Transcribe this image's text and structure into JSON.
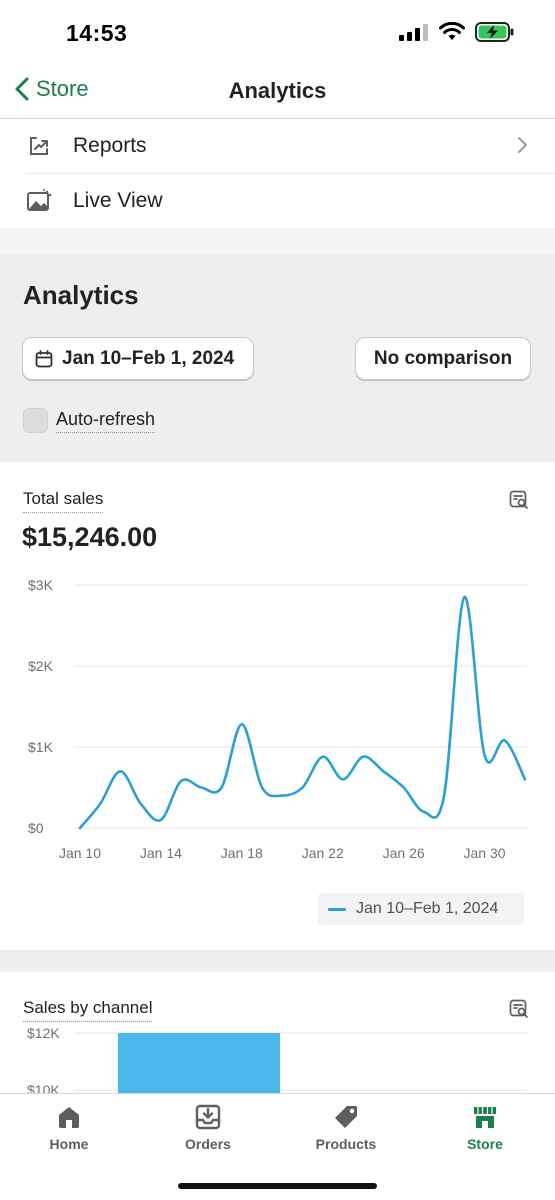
{
  "status_bar": {
    "time": "14:53"
  },
  "nav": {
    "back_label": "Store",
    "title": "Analytics"
  },
  "menu": {
    "items": [
      {
        "label": "Reports",
        "icon": "reports-icon"
      },
      {
        "label": "Live View",
        "icon": "live-view-icon"
      }
    ]
  },
  "analytics": {
    "title": "Analytics",
    "date_range": "Jan 10–Feb 1, 2024",
    "comparison": "No comparison",
    "auto_refresh_label": "Auto-refresh",
    "auto_refresh_checked": false
  },
  "total_sales": {
    "label": "Total sales",
    "value": "$15,246.00",
    "legend_label": "Jan 10–Feb 1, 2024"
  },
  "sales_by_channel": {
    "label": "Sales by channel"
  },
  "tabs": [
    {
      "label": "Home",
      "icon": "home-icon",
      "active": false
    },
    {
      "label": "Orders",
      "icon": "orders-icon",
      "active": false
    },
    {
      "label": "Products",
      "icon": "tag-icon",
      "active": false
    },
    {
      "label": "Store",
      "icon": "store-icon",
      "active": true
    }
  ],
  "colors": {
    "accent": "#1a7f4e",
    "line": "#2a9fd8",
    "bar": "#4bb8ec"
  },
  "chart_data": [
    {
      "type": "line",
      "title": "Total sales",
      "x": [
        "Jan 10",
        "Jan 11",
        "Jan 12",
        "Jan 13",
        "Jan 14",
        "Jan 15",
        "Jan 16",
        "Jan 17",
        "Jan 18",
        "Jan 19",
        "Jan 20",
        "Jan 21",
        "Jan 22",
        "Jan 23",
        "Jan 24",
        "Jan 25",
        "Jan 26",
        "Jan 27",
        "Jan 28",
        "Jan 29",
        "Jan 30",
        "Jan 31",
        "Feb 1"
      ],
      "x_tick_labels": [
        "Jan 10",
        "Jan 14",
        "Jan 18",
        "Jan 22",
        "Jan 26",
        "Jan 30"
      ],
      "y_tick_labels": [
        "$0",
        "$1K",
        "$2K",
        "$3K"
      ],
      "ylim": [
        0,
        3000
      ],
      "series": [
        {
          "name": "Jan 10–Feb 1, 2024",
          "values": [
            0,
            300,
            700,
            300,
            100,
            580,
            500,
            500,
            1280,
            500,
            400,
            500,
            880,
            600,
            880,
            700,
            500,
            200,
            400,
            2850,
            900,
            1080,
            600
          ]
        }
      ],
      "grid": true,
      "legend": "bottom-right"
    },
    {
      "type": "bar",
      "title": "Sales by channel",
      "y_tick_labels": [
        "$10K",
        "$12K"
      ],
      "values": [
        12000
      ]
    }
  ]
}
